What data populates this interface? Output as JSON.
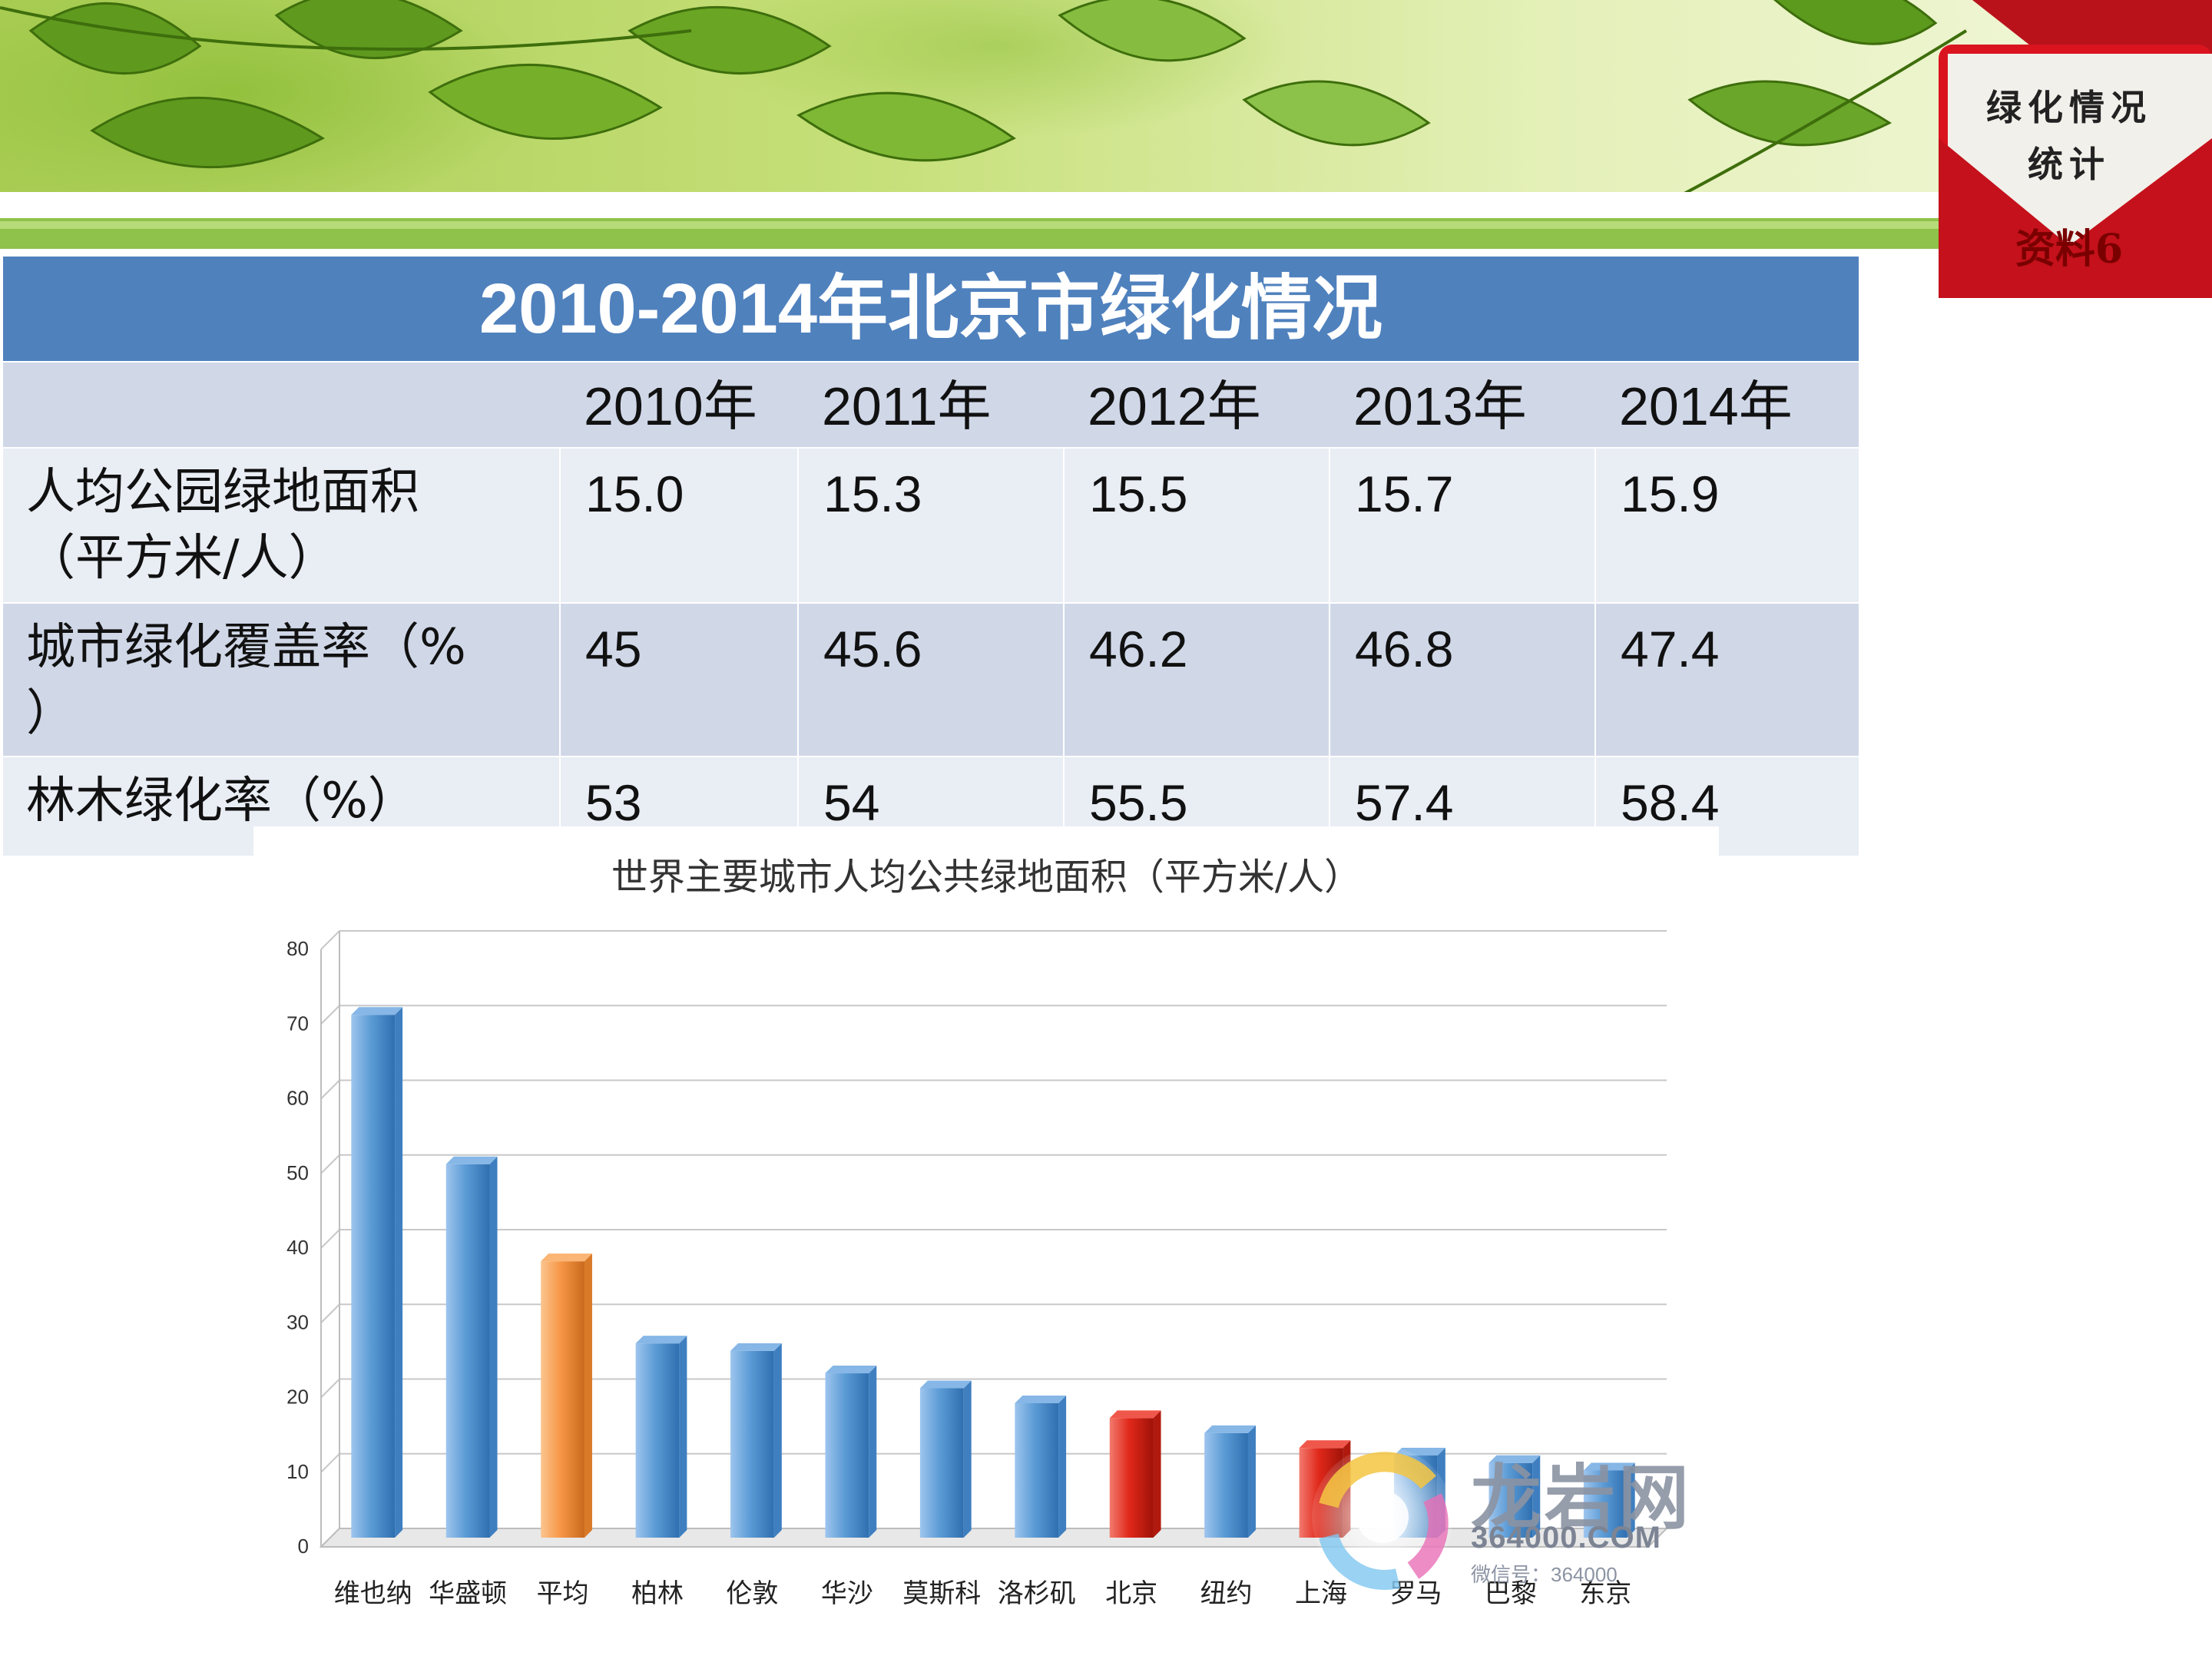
{
  "tag": {
    "line1": "绿化情况",
    "line2": "统计",
    "line3": "资料6"
  },
  "table": {
    "title": "2010-2014年北京市绿化情况",
    "years": [
      "2010年",
      "2011年",
      "2012年",
      "2013年",
      "2014年"
    ],
    "rows": [
      {
        "label_l1": "人均公园绿地面积",
        "label_l2": "（平方米/人）",
        "values": [
          "15.0",
          "15.3",
          "15.5",
          "15.7",
          "15.9"
        ]
      },
      {
        "label_l1": "城市绿化覆盖率（%",
        "label_l2": "）",
        "values": [
          "45",
          "45.6",
          "46.2",
          "46.8",
          "47.4"
        ]
      },
      {
        "label_l1": "林木绿化率（%）",
        "label_l2": "",
        "values": [
          "53",
          "54",
          "55.5",
          "57.4",
          "58.4"
        ]
      }
    ]
  },
  "chart_data": {
    "type": "bar",
    "title": "世界主要城市人均公共绿地面积（平方米/人）",
    "categories": [
      "维也纳",
      "华盛顿",
      "平均",
      "柏林",
      "伦敦",
      "华沙",
      "莫斯科",
      "洛杉矶",
      "北京",
      "纽约",
      "上海",
      "罗马",
      "巴黎",
      "东京"
    ],
    "values": [
      70,
      50,
      37,
      26,
      25,
      22,
      20,
      18,
      16,
      14,
      12,
      11,
      10,
      9
    ],
    "colors": [
      "#5b9bd5",
      "#5b9bd5",
      "#f79646",
      "#5b9bd5",
      "#5b9bd5",
      "#5b9bd5",
      "#5b9bd5",
      "#5b9bd5",
      "#e0281a",
      "#5b9bd5",
      "#e0281a",
      "#5b9bd5",
      "#5b9bd5",
      "#5b9bd5"
    ],
    "yticks": [
      "0",
      "10",
      "20",
      "30",
      "40",
      "50",
      "60",
      "70",
      "80"
    ],
    "ylim": [
      0,
      80
    ],
    "xlabel": "",
    "ylabel": "",
    "grid": true,
    "legend": "none"
  },
  "watermark": {
    "name": "龙岩网",
    "url": "364000.COM",
    "sub": "微信号：364000"
  }
}
